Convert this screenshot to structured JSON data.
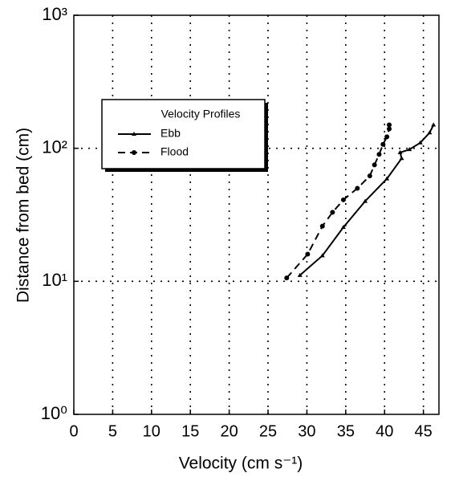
{
  "chart_data": {
    "type": "line",
    "x_label": "Velocity (cm s⁻¹)",
    "y_label": "Distance from bed (cm)",
    "legend_title": "Velocity Profiles",
    "legend_position": "upper left",
    "y_scale": "log",
    "grid": true,
    "xlim": [
      0,
      47
    ],
    "ylim": [
      1,
      1000
    ],
    "xticks": [
      0,
      5,
      10,
      15,
      20,
      25,
      30,
      35,
      40,
      45
    ],
    "yticks": [
      {
        "value": 1,
        "label": "10⁰"
      },
      {
        "value": 10,
        "label": "10¹"
      },
      {
        "value": 100,
        "label": "10²"
      },
      {
        "value": 1000,
        "label": "10³"
      }
    ],
    "series": [
      {
        "name": "Ebb",
        "color": "#000000",
        "line_style": "solid",
        "marker": "triangle",
        "x": [
          29.1,
          32.0,
          34.7,
          37.5,
          40.3,
          42.2,
          42.0,
          43.2,
          44.6,
          45.8,
          46.3
        ],
        "values": [
          11.1,
          15.6,
          25.5,
          40,
          59,
          84,
          93,
          98,
          110,
          131,
          150
        ]
      },
      {
        "name": "Flood",
        "color": "#000000",
        "line_style": "dashed",
        "marker": "circle",
        "x": [
          27.4,
          30.1,
          32.0,
          33.3,
          34.7,
          36.5,
          38.1,
          38.7,
          39.3,
          39.8,
          40.3,
          40.6,
          40.6
        ],
        "values": [
          10.6,
          16,
          26,
          33,
          41,
          50,
          62,
          75,
          90,
          107,
          122,
          140,
          150
        ]
      }
    ]
  }
}
